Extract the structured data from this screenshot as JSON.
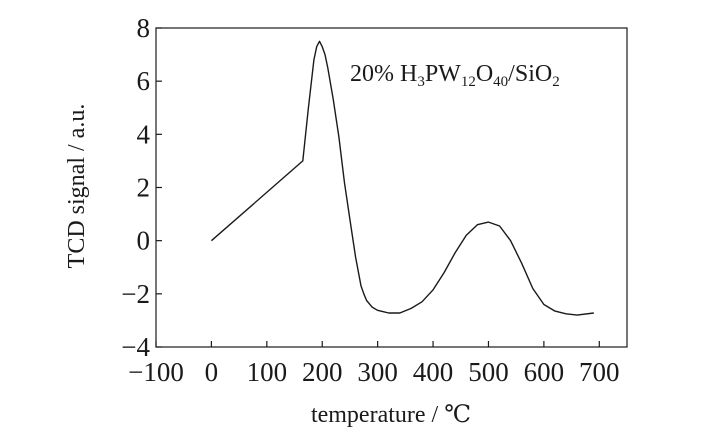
{
  "chart_data": {
    "type": "line",
    "title": "",
    "xlabel": "temperature / ℃",
    "ylabel": "TCD signal / a.u.",
    "xlim": [
      -100,
      750
    ],
    "ylim": [
      -4,
      8
    ],
    "xticks": [
      -100,
      0,
      100,
      200,
      300,
      400,
      500,
      600,
      700
    ],
    "xtick_labels": [
      "−100",
      "0",
      "100",
      "200",
      "300",
      "400",
      "500",
      "600",
      "700"
    ],
    "yticks": [
      -4,
      -2,
      0,
      2,
      4,
      6,
      8
    ],
    "ytick_labels": [
      "−4",
      "−2",
      "0",
      "2",
      "4",
      "6",
      "8"
    ],
    "grid": false,
    "legend_position": "top-right",
    "annotation": {
      "parts": [
        {
          "text": "20% H",
          "sub": false
        },
        {
          "text": "3",
          "sub": true
        },
        {
          "text": "PW",
          "sub": false
        },
        {
          "text": "12",
          "sub": true
        },
        {
          "text": "O",
          "sub": false
        },
        {
          "text": "40",
          "sub": true
        },
        {
          "text": "/SiO",
          "sub": false
        },
        {
          "text": "2",
          "sub": true
        }
      ]
    },
    "series": [
      {
        "x": [
          0,
          165,
          175,
          185,
          190,
          195,
          200,
          205,
          210,
          220,
          230,
          240,
          250,
          260,
          270,
          275,
          280,
          290,
          300,
          320,
          340,
          360,
          380,
          400,
          420,
          440,
          460,
          480,
          500,
          520,
          540,
          560,
          580,
          600,
          620,
          640,
          660,
          690
        ],
        "y": [
          0,
          3.0,
          5.0,
          6.8,
          7.3,
          7.5,
          7.3,
          7.0,
          6.5,
          5.3,
          3.9,
          2.2,
          0.8,
          -0.6,
          -1.7,
          -2.0,
          -2.25,
          -2.5,
          -2.62,
          -2.72,
          -2.72,
          -2.55,
          -2.3,
          -1.85,
          -1.2,
          -0.45,
          0.2,
          0.6,
          0.7,
          0.55,
          0.0,
          -0.85,
          -1.8,
          -2.4,
          -2.65,
          -2.75,
          -2.8,
          -2.72
        ]
      }
    ]
  }
}
